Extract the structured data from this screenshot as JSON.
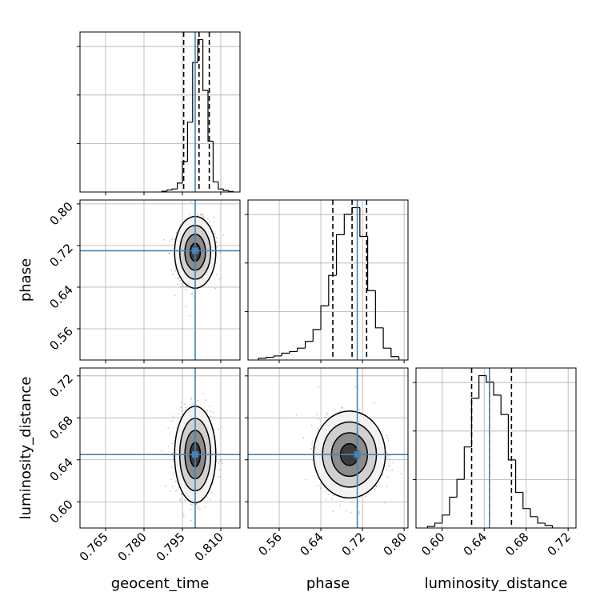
{
  "figure": {
    "colors": {
      "truth": "#4682b4",
      "hist": "#000000",
      "grid": "#b0b0b0",
      "scatter": "#7f7f7f"
    }
  },
  "chart_data": {
    "type": "corner",
    "parameters": [
      "geocent_time",
      "phase",
      "luminosity_distance"
    ],
    "truths": {
      "geocent_time": 0.8,
      "phase": 0.71,
      "luminosity_distance": 0.645
    },
    "axes": {
      "geocent_time": {
        "range": [
          0.755,
          0.8175
        ],
        "ticks": [
          0.765,
          0.78,
          0.795,
          0.81
        ],
        "tick_labels": [
          "0.765",
          "0.780",
          "0.795",
          "0.810"
        ]
      },
      "phase": {
        "range": [
          0.5,
          0.8075
        ],
        "ticks": [
          0.56,
          0.64,
          0.72,
          0.8
        ],
        "tick_labels": [
          "0.56",
          "0.64",
          "0.72",
          "0.80"
        ]
      },
      "luminosity_distance": {
        "range": [
          0.575,
          0.7275
        ],
        "ticks": [
          0.6,
          0.64,
          0.68,
          0.72
        ],
        "tick_labels": [
          "0.60",
          "0.64",
          "0.68",
          "0.72"
        ]
      }
    },
    "marginals": {
      "geocent_time": {
        "bin_edges": [
          0.787,
          0.789,
          0.791,
          0.793,
          0.795,
          0.797,
          0.799,
          0.801,
          0.803,
          0.805,
          0.807,
          0.809,
          0.811,
          0.813,
          0.815
        ],
        "counts": [
          0.3,
          0.8,
          1.2,
          3.5,
          12.0,
          27.5,
          51.0,
          60.0,
          40.0,
          20.0,
          4.0,
          1.2,
          0.6,
          0.2
        ],
        "quantiles": [
          0.7955,
          0.8015,
          0.8055
        ]
      },
      "phase": {
        "bin_edges": [
          0.52,
          0.535,
          0.55,
          0.565,
          0.58,
          0.595,
          0.61,
          0.625,
          0.64,
          0.655,
          0.67,
          0.685,
          0.7,
          0.715,
          0.73,
          0.745,
          0.76,
          0.775,
          0.79
        ],
        "counts": [
          0.5,
          0.8,
          1.2,
          2.0,
          2.5,
          3.5,
          5.5,
          9.0,
          16.0,
          25.0,
          37.0,
          43.0,
          45.0,
          36.5,
          20.5,
          9.5,
          3.5,
          1.0
        ],
        "quantiles": [
          0.663,
          0.7,
          0.728
        ]
      },
      "luminosity_distance": {
        "bin_edges": [
          0.586,
          0.593,
          0.6,
          0.607,
          0.614,
          0.621,
          0.628,
          0.635,
          0.642,
          0.649,
          0.656,
          0.663,
          0.67,
          0.677,
          0.684,
          0.691,
          0.698,
          0.705
        ],
        "counts": [
          0.5,
          1.5,
          4.0,
          9.5,
          15.0,
          25.0,
          40.0,
          47.0,
          45.0,
          41.0,
          35.0,
          21.0,
          11.0,
          6.0,
          3.5,
          1.5,
          0.8
        ],
        "quantiles": [
          0.628,
          0.645,
          0.666
        ]
      }
    },
    "joint": [
      {
        "x": "geocent_time",
        "y": "phase",
        "center": [
          0.8,
          0.707
        ],
        "sigma": [
          0.0035,
          0.03
        ],
        "rho": 0.1,
        "contour_sigmas": [
          0.5,
          1.0,
          1.5,
          2.0
        ]
      },
      {
        "x": "geocent_time",
        "y": "luminosity_distance",
        "center": [
          0.8,
          0.645
        ],
        "sigma": [
          0.0035,
          0.02
        ],
        "rho": 0.0,
        "contour_sigmas": [
          0.5,
          1.0,
          1.5,
          2.0
        ]
      },
      {
        "x": "phase",
        "y": "luminosity_distance",
        "center": [
          0.695,
          0.645
        ],
        "sigma": [
          0.03,
          0.018
        ],
        "rho": 0.0,
        "contour_sigmas": [
          0.5,
          1.0,
          1.5,
          2.0
        ]
      }
    ],
    "grid": true,
    "xlabel_bottom": [
      "geocent_time",
      "phase",
      "luminosity_distance"
    ],
    "ylabel_left": [
      "phase",
      "luminosity_distance"
    ]
  }
}
